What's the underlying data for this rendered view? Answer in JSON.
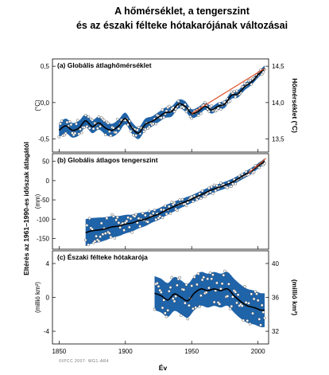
{
  "title_line1": "A hőmérséklet, a tengerszint",
  "title_line2": "és az északi félteke hótakarójának változásai",
  "shared_ylabel": "Eltérés az 1961–1990-es időszak átlagától",
  "xlabel": "Év",
  "copyright": "©IPCC 2007: WG1-AR4",
  "colors": {
    "band": "#1f63a8",
    "smooth": "#000000",
    "trend": "#e0502a",
    "points": "#ffffff"
  },
  "chart_data": [
    {
      "type": "line",
      "panel_label": "(a) Globális átlaghőmérséklet",
      "left_unit": "(°C)",
      "right_label": "Hőmérséklet (°C)",
      "xlim": [
        1845,
        2008
      ],
      "ylim": [
        -0.68,
        0.6
      ],
      "left_ticks": [
        "0,5",
        "0,0",
        "-0,5"
      ],
      "left_tick_values": [
        0.5,
        0.0,
        -0.5
      ],
      "right_ticks": [
        "14,5",
        "14,0",
        "13,5"
      ],
      "right_tick_values": [
        0.5,
        0.0,
        -0.5
      ],
      "x": [
        1850,
        1855,
        1860,
        1865,
        1870,
        1875,
        1880,
        1885,
        1890,
        1895,
        1900,
        1905,
        1910,
        1915,
        1920,
        1925,
        1930,
        1935,
        1940,
        1945,
        1950,
        1955,
        1960,
        1965,
        1970,
        1975,
        1980,
        1985,
        1990,
        1995,
        2000,
        2005
      ],
      "smoothed": [
        -0.38,
        -0.32,
        -0.38,
        -0.35,
        -0.25,
        -0.33,
        -0.28,
        -0.35,
        -0.38,
        -0.32,
        -0.22,
        -0.35,
        -0.42,
        -0.3,
        -0.26,
        -0.2,
        -0.14,
        -0.12,
        -0.02,
        -0.05,
        -0.15,
        -0.12,
        -0.05,
        -0.1,
        -0.05,
        -0.02,
        0.1,
        0.12,
        0.22,
        0.28,
        0.38,
        0.47
      ],
      "uncertainty": [
        0.1,
        0.1,
        0.1,
        0.1,
        0.09,
        0.09,
        0.09,
        0.09,
        0.09,
        0.09,
        0.08,
        0.08,
        0.08,
        0.08,
        0.07,
        0.07,
        0.07,
        0.07,
        0.06,
        0.07,
        0.06,
        0.06,
        0.05,
        0.05,
        0.05,
        0.05,
        0.05,
        0.05,
        0.05,
        0.04,
        0.04,
        0.04
      ],
      "trend_x": [
        1950,
        2005
      ],
      "trend_y": [
        -0.15,
        0.47
      ]
    },
    {
      "type": "line",
      "panel_label": "(b) Globális átlagos tengerszint",
      "left_unit": "(mm)",
      "xlim": [
        1845,
        2008
      ],
      "ylim": [
        -178,
        70
      ],
      "left_ticks": [
        "50",
        "0",
        "-50",
        "-100",
        "-150"
      ],
      "left_tick_values": [
        50,
        0,
        -50,
        -100,
        -150
      ],
      "x": [
        1870,
        1875,
        1880,
        1885,
        1890,
        1895,
        1900,
        1905,
        1910,
        1915,
        1920,
        1925,
        1930,
        1935,
        1940,
        1945,
        1950,
        1955,
        1960,
        1965,
        1970,
        1975,
        1980,
        1985,
        1990,
        1995,
        2000,
        2005
      ],
      "smoothed": [
        -135,
        -130,
        -128,
        -125,
        -120,
        -118,
        -113,
        -110,
        -104,
        -100,
        -93,
        -87,
        -78,
        -70,
        -62,
        -55,
        -48,
        -40,
        -32,
        -24,
        -18,
        -12,
        -5,
        5,
        15,
        25,
        38,
        50
      ],
      "uncertainty": [
        35,
        33,
        32,
        30,
        28,
        26,
        24,
        22,
        20,
        18,
        16,
        15,
        14,
        13,
        12,
        11,
        10,
        10,
        10,
        10,
        9,
        9,
        9,
        8,
        8,
        8,
        7,
        7
      ],
      "trend_x": [
        1993,
        2006
      ],
      "trend_y": [
        20,
        58
      ]
    },
    {
      "type": "line",
      "panel_label": "(c) Északi félteke hótakarója",
      "left_unit": "(millió km²)",
      "right_label": "(millió km²)",
      "xlim": [
        1845,
        2008
      ],
      "ylim": [
        -5.5,
        5.5
      ],
      "left_ticks": [
        "4",
        "0",
        "-4"
      ],
      "left_tick_values": [
        4,
        0,
        -4
      ],
      "right_ticks": [
        "40",
        "36",
        "32"
      ],
      "right_tick_values": [
        4,
        0,
        -4
      ],
      "x": [
        1922,
        1927,
        1932,
        1937,
        1942,
        1947,
        1952,
        1957,
        1962,
        1967,
        1972,
        1977,
        1982,
        1987,
        1992,
        1997,
        2002,
        2005
      ],
      "smoothed": [
        0.5,
        0.2,
        -0.3,
        0.4,
        0.0,
        -0.4,
        0.5,
        1.0,
        0.8,
        1.0,
        0.8,
        1.0,
        0.2,
        -0.5,
        -1.0,
        -1.2,
        -1.5,
        -1.5
      ],
      "uncertainty": [
        2.0,
        2.0,
        2.0,
        2.0,
        2.0,
        2.0,
        2.0,
        2.0,
        2.0,
        2.0,
        2.0,
        2.0,
        2.0,
        2.0,
        2.0,
        2.0,
        2.0,
        2.0
      ]
    }
  ],
  "x_ticks": [
    "1850",
    "1900",
    "1950",
    "2000"
  ],
  "x_tick_values": [
    1850,
    1900,
    1950,
    2000
  ]
}
